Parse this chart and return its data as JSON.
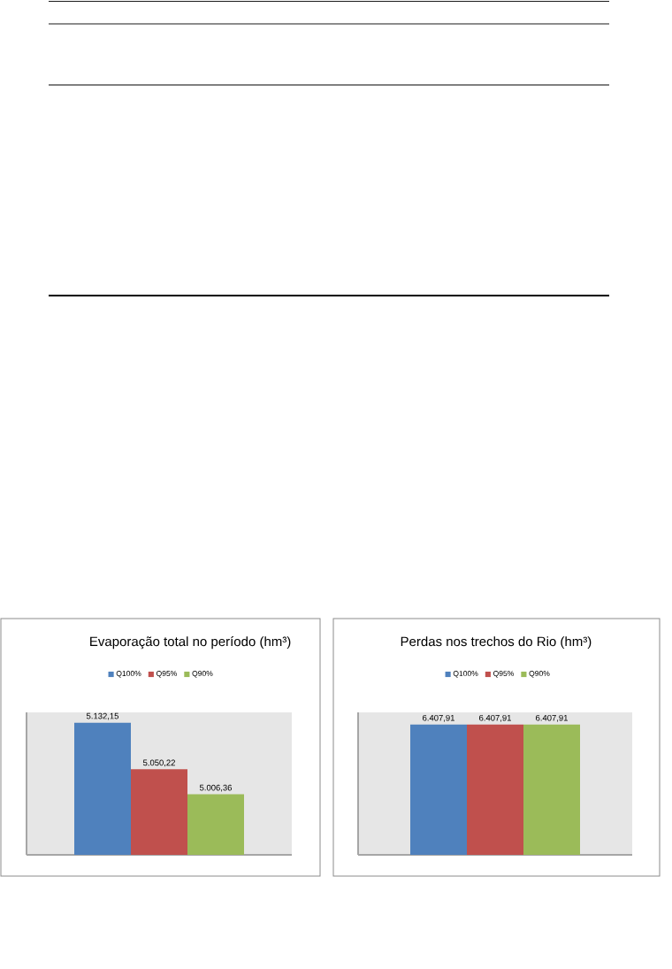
{
  "chart_data": [
    {
      "type": "bar",
      "title": "Evaporação total no período (hm³)",
      "categories": [
        null
      ],
      "series": [
        {
          "name": "Q100%",
          "color": "#4f81bd",
          "values": [
            5132.15
          ],
          "value_labels": [
            "5.132,15"
          ]
        },
        {
          "name": "Q95%",
          "color": "#c0504d",
          "values": [
            5050.22
          ],
          "value_labels": [
            "5.050,22"
          ]
        },
        {
          "name": "Q90%",
          "color": "#9bbb59",
          "values": [
            5006.36
          ],
          "value_labels": [
            "5.006,36"
          ]
        }
      ],
      "ylim": [
        4900,
        5150
      ],
      "legend": "top",
      "tick_labels": false
    },
    {
      "type": "bar",
      "title": "Perdas nos trechos do Rio (hm³)",
      "categories": [
        null
      ],
      "series": [
        {
          "name": "Q100%",
          "color": "#4f81bd",
          "values": [
            6407.91
          ],
          "value_labels": [
            "6.407,91"
          ]
        },
        {
          "name": "Q95%",
          "color": "#c0504d",
          "values": [
            6407.91
          ],
          "value_labels": [
            "6.407,91"
          ]
        },
        {
          "name": "Q90%",
          "color": "#9bbb59",
          "values": [
            6407.91
          ],
          "value_labels": [
            "6.407,91"
          ]
        }
      ],
      "ylim": [
        0,
        7000
      ],
      "legend": "top",
      "tick_labels": false
    }
  ]
}
